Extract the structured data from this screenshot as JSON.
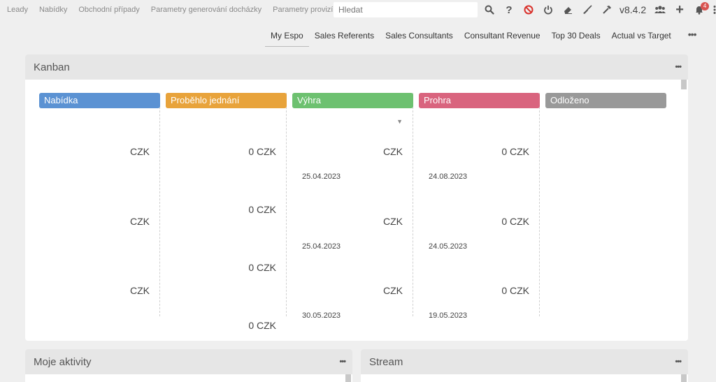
{
  "navbar": {
    "links": [
      "Leady",
      "Nabídky",
      "Obchodní případy",
      "Parametry generování docházky",
      "Parametry provizí"
    ],
    "search_placeholder": "Hledat",
    "version": "v8.4.2",
    "notification_count": "4"
  },
  "tabs": {
    "items": [
      "My Espo",
      "Sales Referents",
      "Sales Consultants",
      "Consultant Revenue",
      "Top 30 Deals",
      "Actual vs Target"
    ],
    "more": "•••"
  },
  "kanban": {
    "title": "Kanban",
    "menu": "•••",
    "columns": [
      {
        "label": "Nabídka",
        "color": "#5b92d3",
        "cards": [
          {
            "amount": "CZK",
            "date": ""
          },
          {
            "amount": "CZK",
            "date": ""
          },
          {
            "amount": "CZK",
            "date": ""
          }
        ]
      },
      {
        "label": "Proběhlo jednání",
        "color": "#e8a33b",
        "cards": [
          {
            "amount": "0 CZK",
            "date": ""
          },
          {
            "amount": "0 CZK",
            "date": ""
          },
          {
            "amount": "0 CZK",
            "date": ""
          },
          {
            "amount": "0 CZK",
            "date": ""
          }
        ]
      },
      {
        "label": "Výhra",
        "color": "#6dc170",
        "cards": [
          {
            "amount": "CZK",
            "date": "25.04.2023"
          },
          {
            "amount": "CZK",
            "date": "25.04.2023"
          },
          {
            "amount": "CZK",
            "date": "30.05.2023"
          }
        ]
      },
      {
        "label": "Prohra",
        "color": "#d9647e",
        "cards": [
          {
            "amount": "0 CZK",
            "date": "24.08.2023"
          },
          {
            "amount": "0 CZK",
            "date": "24.05.2023"
          },
          {
            "amount": "0 CZK",
            "date": "19.05.2023"
          }
        ]
      },
      {
        "label": "Odloženo",
        "color": "#999999",
        "cards": []
      }
    ]
  },
  "activities": {
    "title": "Moje aktivity",
    "menu": "•••"
  },
  "stream": {
    "title": "Stream",
    "menu": "•••"
  }
}
